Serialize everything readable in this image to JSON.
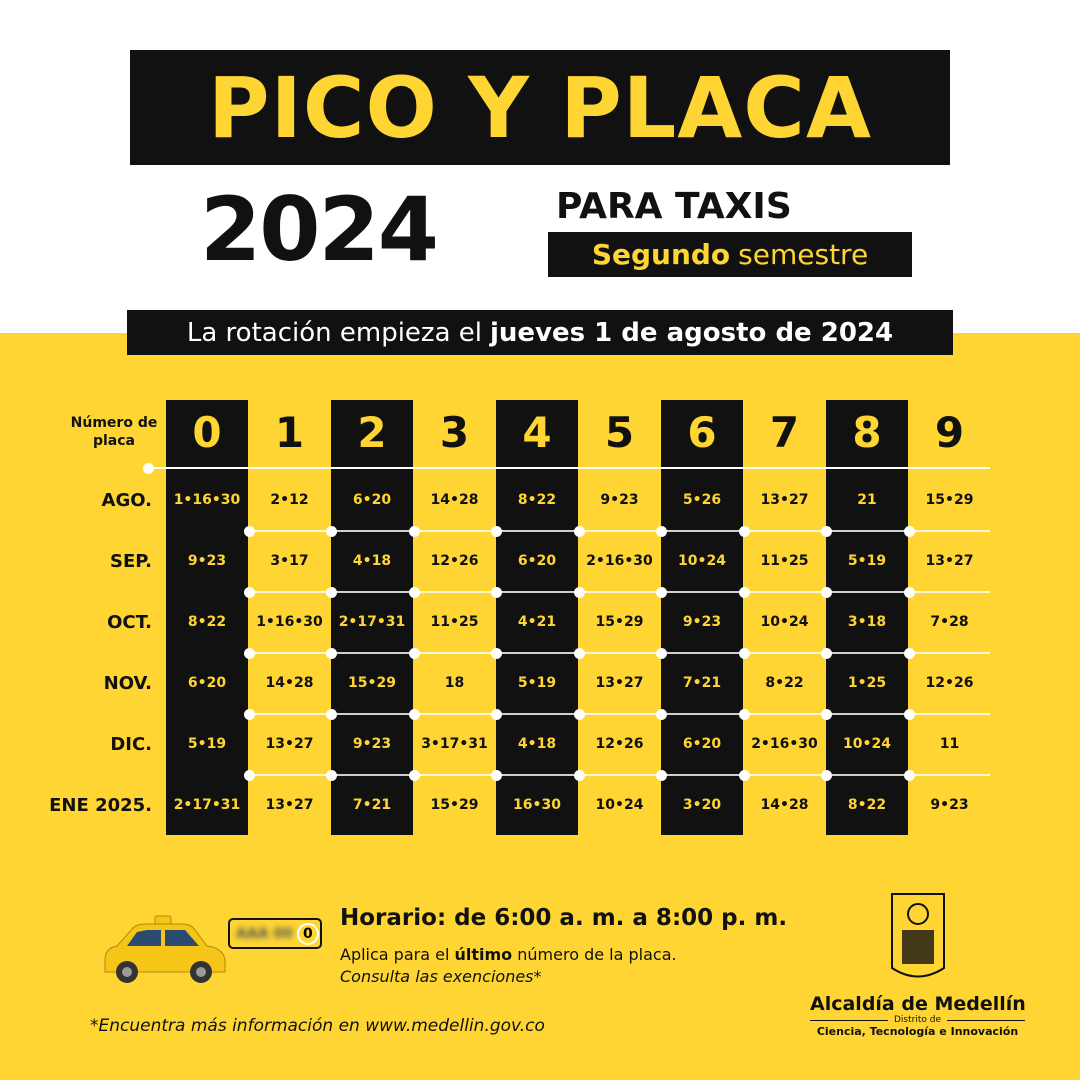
{
  "colors": {
    "yellow": "#fed533",
    "black": "#111111",
    "white": "#ffffff"
  },
  "title": "PICO Y PLACA",
  "year": "2024",
  "subtitle": "PARA TAXIS",
  "semester": {
    "bold": "Segundo",
    "rest": "semestre"
  },
  "rotation": {
    "prefix": "La rotación empieza el",
    "bold": "jueves 1 de agosto de 2024"
  },
  "table": {
    "header_label": "Número de placa",
    "plates": [
      "0",
      "1",
      "2",
      "3",
      "4",
      "5",
      "6",
      "7",
      "8",
      "9"
    ],
    "rows": [
      {
        "month": "AGO.",
        "cells": [
          "1•16•30",
          "2•12",
          "6•20",
          "14•28",
          "8•22",
          "9•23",
          "5•26",
          "13•27",
          "21",
          "15•29"
        ]
      },
      {
        "month": "SEP.",
        "cells": [
          "9•23",
          "3•17",
          "4•18",
          "12•26",
          "6•20",
          "2•16•30",
          "10•24",
          "11•25",
          "5•19",
          "13•27"
        ]
      },
      {
        "month": "OCT.",
        "cells": [
          "8•22",
          "1•16•30",
          "2•17•31",
          "11•25",
          "4•21",
          "15•29",
          "9•23",
          "10•24",
          "3•18",
          "7•28"
        ]
      },
      {
        "month": "NOV.",
        "cells": [
          "6•20",
          "14•28",
          "15•29",
          "18",
          "5•19",
          "13•27",
          "7•21",
          "8•22",
          "1•25",
          "12•26"
        ]
      },
      {
        "month": "DIC.",
        "cells": [
          "5•19",
          "13•27",
          "9•23",
          "3•17•31",
          "4•18",
          "12•26",
          "6•20",
          "2•16•30",
          "10•24",
          "11"
        ]
      },
      {
        "month": "ENE 2025.",
        "cells": [
          "2•17•31",
          "13•27",
          "7•21",
          "15•29",
          "16•30",
          "10•24",
          "3•20",
          "14•28",
          "8•22",
          "9•23"
        ]
      }
    ]
  },
  "plate": {
    "blurred": "AAA 00",
    "last_digit": "0"
  },
  "taxi_icon": "taxi-car-icon",
  "horario": "Horario: de 6:00 a. m. a 8:00 p. m.",
  "aplica": {
    "prefix": "Aplica para el",
    "bold": "último",
    "suffix": "número de la placa."
  },
  "consulta": "Consulta las exenciones*",
  "footer": "*Encuentra más información en www.medellin.gov.co",
  "logo": {
    "name": "Alcaldía de Medellín",
    "distrito": "Distrito de",
    "sector": "Ciencia, Tecnología e Innovación"
  }
}
